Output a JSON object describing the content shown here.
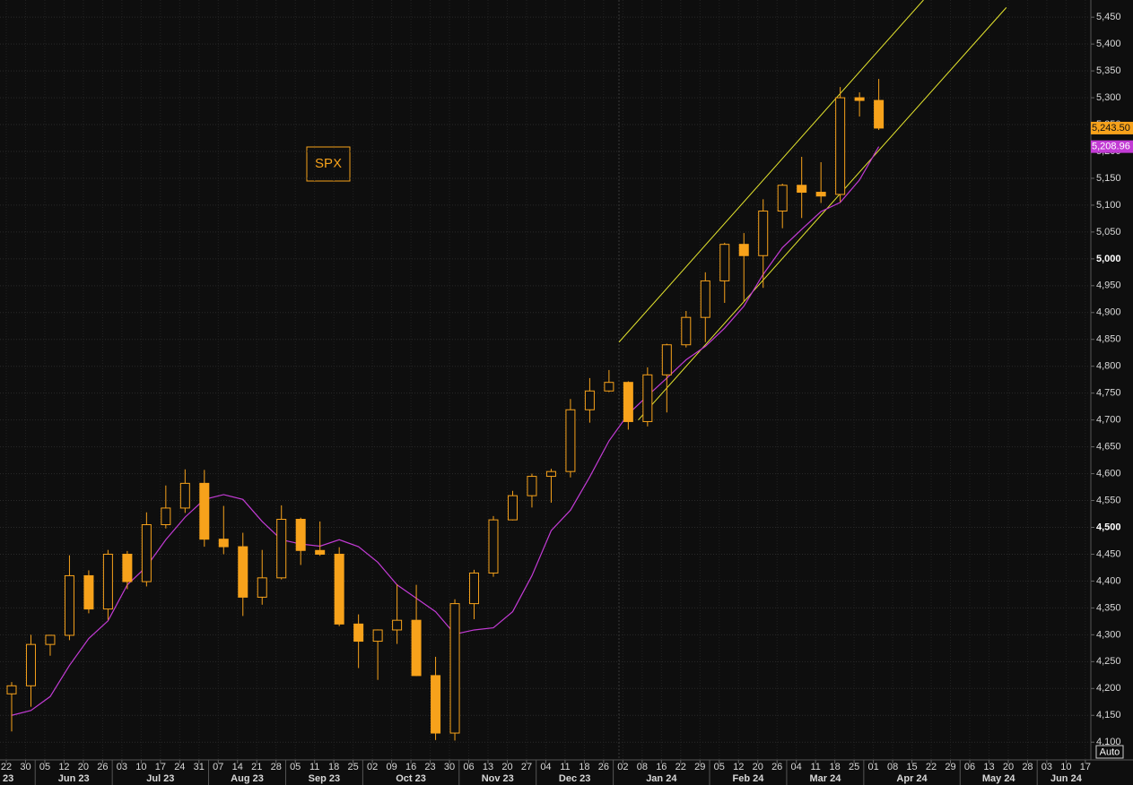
{
  "chart_data": {
    "type": "candlestick",
    "annotation": "SPX",
    "button": "Auto",
    "categories": [
      "22",
      "30",
      "05",
      "12",
      "20",
      "26",
      "03",
      "10",
      "17",
      "24",
      "31",
      "07",
      "14",
      "21",
      "28",
      "05",
      "11",
      "18",
      "25",
      "02",
      "09",
      "16",
      "23",
      "30",
      "06",
      "13",
      "20",
      "27",
      "04",
      "11",
      "18",
      "26",
      "02",
      "08",
      "16",
      "22",
      "29",
      "05",
      "12",
      "20",
      "26",
      "04",
      "11",
      "18",
      "25",
      "01",
      "08",
      "15",
      "22",
      "29",
      "06",
      "13",
      "20",
      "28",
      "03",
      "10",
      "17"
    ],
    "month_labels": [
      "23",
      "Jun 23",
      "Jul 23",
      "Aug 23",
      "Sep 23",
      "Oct 23",
      "Nov 23",
      "Dec 23",
      "Jan 24",
      "Feb 24",
      "Mar 24",
      "Apr 24",
      "May 24",
      "Jun 24"
    ],
    "open": [
      4190,
      4205,
      4282,
      4299,
      4410,
      4348,
      4450,
      4399,
      4505,
      4536,
      4582,
      4478,
      4464,
      4370,
      4406,
      4515,
      4457,
      4450,
      4320,
      4288,
      4309,
      4327,
      4224,
      4117,
      4358,
      4415,
      4514,
      4559,
      4595,
      4604,
      4719,
      4754,
      4770,
      4697,
      4784,
      4840,
      4891,
      4959,
      5027,
      5006,
      5089,
      5137,
      5124,
      5120,
      5300,
      5295,
      null,
      null,
      null,
      null,
      null,
      null,
      null,
      null,
      null,
      null,
      null
    ],
    "high": [
      4212,
      4300,
      4300,
      4448,
      4420,
      4458,
      4456,
      4528,
      4578,
      4608,
      4607,
      4540,
      4490,
      4458,
      4541,
      4518,
      4511,
      4463,
      4338,
      4310,
      4394,
      4393,
      4259,
      4366,
      4421,
      4521,
      4568,
      4600,
      4609,
      4739,
      4778,
      4793,
      4772,
      4798,
      4842,
      4903,
      4975,
      5030,
      5048,
      5111,
      5140,
      5190,
      5180,
      5320,
      5310,
      5335,
      null,
      null,
      null,
      null,
      null,
      null,
      null,
      null,
      null,
      null,
      null
    ],
    "low": [
      4120,
      4166,
      4261,
      4290,
      4340,
      4328,
      4385,
      4390,
      4498,
      4527,
      4464,
      4450,
      4335,
      4356,
      4403,
      4430,
      4447,
      4316,
      4238,
      4216,
      4283,
      4223,
      4104,
      4103,
      4329,
      4408,
      4513,
      4537,
      4546,
      4593,
      4695,
      4752,
      4682,
      4688,
      4714,
      4835,
      4845,
      4918,
      4920,
      4946,
      5057,
      5076,
      5104,
      5106,
      5265,
      5240,
      null,
      null,
      null,
      null,
      null,
      null,
      null,
      null,
      null,
      null,
      null
    ],
    "close": [
      4205,
      4282,
      4299,
      4410,
      4348,
      4450,
      4399,
      4505,
      4536,
      4582,
      4478,
      4464,
      4370,
      4406,
      4515,
      4457,
      4450,
      4320,
      4288,
      4309,
      4327,
      4224,
      4117,
      4358,
      4415,
      4514,
      4559,
      4595,
      4604,
      4719,
      4754,
      4770,
      4697,
      4784,
      4840,
      4891,
      4959,
      5027,
      5006,
      5089,
      5137,
      5124,
      5117,
      5300,
      5295,
      5243.5,
      null,
      null,
      null,
      null,
      null,
      null,
      null,
      null,
      null,
      null,
      null
    ],
    "candle_color": "#f7a21b",
    "ma": {
      "color": "#c23bd4",
      "values": [
        4150,
        4159,
        4185,
        4243,
        4293,
        4326,
        4393,
        4427,
        4477,
        4519,
        4552,
        4561,
        4552,
        4511,
        4477,
        4469,
        4465,
        4477,
        4464,
        4435,
        4393,
        4368,
        4343,
        4301,
        4309,
        4313,
        4343,
        4410,
        4494,
        4532,
        4594,
        4661,
        4711,
        4745,
        4778,
        4812,
        4837,
        4871,
        4912,
        4971,
        5021,
        5055,
        5088,
        5105,
        5147,
        5208.96,
        null,
        null,
        null,
        null,
        null,
        null,
        null,
        null,
        null,
        null,
        null
      ]
    },
    "trendline_color": "#e6e62e",
    "trendlines": [
      {
        "x": [
          31.8,
          47.6
        ],
        "values": [
          4845,
          5482
        ]
      },
      {
        "x": [
          32.8,
          51.9
        ],
        "values": [
          4700,
          5468
        ]
      }
    ],
    "price_tags": [
      {
        "value": 5243.5,
        "label": "5,243.50",
        "color": "#f7a21b"
      },
      {
        "value": 5208.96,
        "label": "5,208.96",
        "color": "#c23bd4"
      }
    ],
    "ylim": [
      4067,
      5482
    ],
    "yticks": [
      {
        "value": 4100,
        "label": "4,100"
      },
      {
        "value": 4150,
        "label": "4,150"
      },
      {
        "value": 4200,
        "label": "4,200"
      },
      {
        "value": 4250,
        "label": "4,250"
      },
      {
        "value": 4300,
        "label": "4,300"
      },
      {
        "value": 4350,
        "label": "4,350"
      },
      {
        "value": 4400,
        "label": "4,400"
      },
      {
        "value": 4450,
        "label": "4,450"
      },
      {
        "value": 4500,
        "label": "4,500"
      },
      {
        "value": 4550,
        "label": "4,550"
      },
      {
        "value": 4600,
        "label": "4,600"
      },
      {
        "value": 4650,
        "label": "4,650"
      },
      {
        "value": 4700,
        "label": "4,700"
      },
      {
        "value": 4750,
        "label": "4,750"
      },
      {
        "value": 4800,
        "label": "4,800"
      },
      {
        "value": 4850,
        "label": "4,850"
      },
      {
        "value": 4900,
        "label": "4,900"
      },
      {
        "value": 4950,
        "label": "4,950"
      },
      {
        "value": 5000,
        "label": "5,000"
      },
      {
        "value": 5050,
        "label": "5,050"
      },
      {
        "value": 5100,
        "label": "5,100"
      },
      {
        "value": 5150,
        "label": "5,150"
      },
      {
        "value": 5200,
        "label": "5,200"
      },
      {
        "value": 5250,
        "label": "5,250"
      },
      {
        "value": 5300,
        "label": "5,300"
      },
      {
        "value": 5350,
        "label": "5,350"
      },
      {
        "value": 5400,
        "label": "5,400"
      },
      {
        "value": 5450,
        "label": "5,450"
      }
    ],
    "grid": true
  }
}
